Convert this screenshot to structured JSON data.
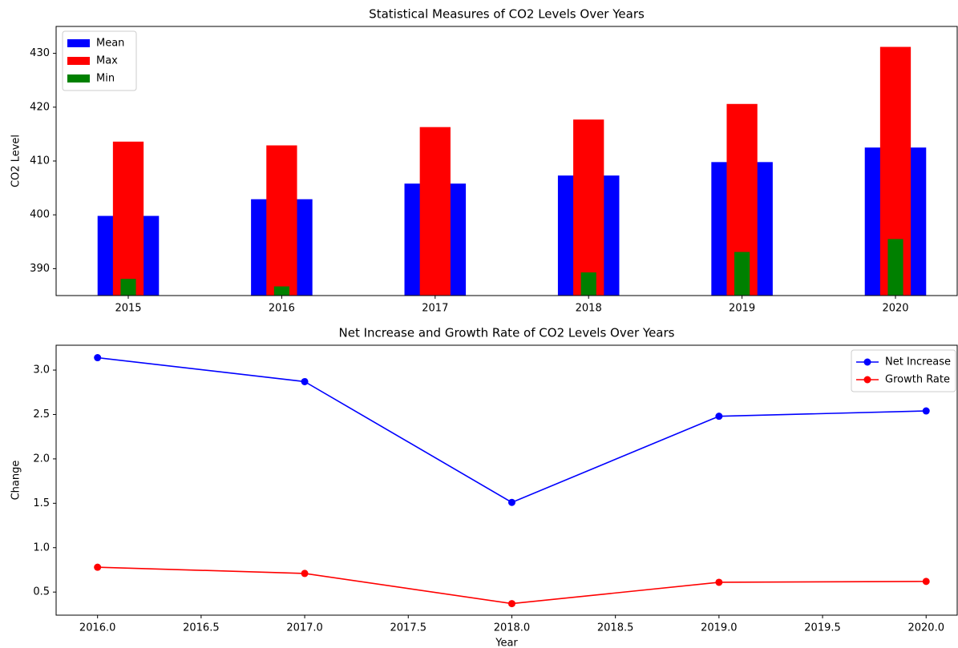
{
  "chart_data": [
    {
      "type": "bar",
      "title": "Statistical Measures of CO2 Levels Over Years",
      "ylabel": "CO2 Level",
      "categories": [
        "2015",
        "2016",
        "2017",
        "2018",
        "2019",
        "2020"
      ],
      "series": [
        {
          "name": "Mean",
          "color": "#0000ff",
          "values": [
            399.8,
            402.9,
            405.8,
            407.3,
            409.8,
            412.5
          ]
        },
        {
          "name": "Max",
          "color": "#ff0000",
          "values": [
            413.6,
            412.9,
            416.3,
            417.7,
            420.6,
            431.2
          ]
        },
        {
          "name": "Min",
          "color": "#008000",
          "values": [
            388.1,
            386.7,
            384.8,
            389.3,
            393.1,
            395.5
          ]
        }
      ],
      "ylim": [
        385,
        435
      ],
      "yticks": [
        390,
        400,
        410,
        420,
        430
      ],
      "legend": "upper left"
    },
    {
      "type": "line",
      "title": "Net Increase and Growth Rate of CO2 Levels Over Years",
      "xlabel": "Year",
      "ylabel": "Change",
      "x": [
        2016,
        2017,
        2018,
        2019,
        2020
      ],
      "series": [
        {
          "name": "Net Increase",
          "color": "#0000ff",
          "values": [
            3.14,
            2.87,
            1.51,
            2.48,
            2.54
          ]
        },
        {
          "name": "Growth Rate",
          "color": "#ff0000",
          "values": [
            0.78,
            0.71,
            0.37,
            0.61,
            0.62
          ]
        }
      ],
      "xlim": [
        2015.8,
        2020.15
      ],
      "xticks": [
        {
          "value": 2016,
          "label": "2016.0"
        },
        2016.5,
        {
          "value": 2017,
          "label": "2017.0"
        },
        2017.5,
        {
          "value": 2018,
          "label": "2018.0"
        },
        2018.5,
        {
          "value": 2019,
          "label": "2019.0"
        },
        2019.5,
        {
          "value": 2020,
          "label": "2020.0"
        }
      ],
      "ylim": [
        0.24,
        3.28
      ],
      "yticks": [
        0.5,
        {
          "value": 1,
          "label": "1.0"
        },
        1.5,
        {
          "value": 2,
          "label": "2.0"
        },
        2.5,
        {
          "value": 3,
          "label": "3.0"
        }
      ],
      "legend": "upper right"
    }
  ]
}
